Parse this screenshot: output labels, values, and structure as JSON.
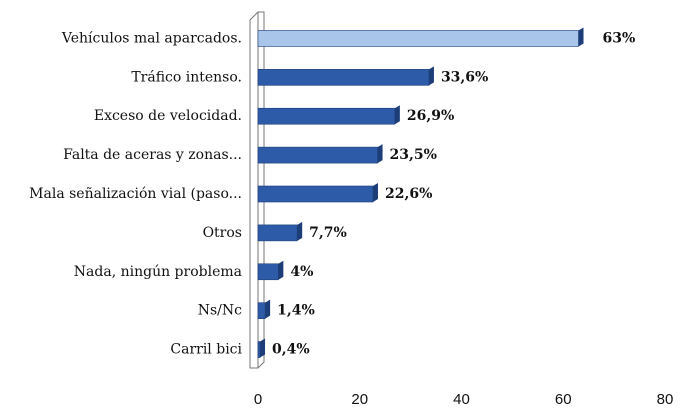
{
  "chart_data": {
    "type": "hbar",
    "categories": [
      "Vehículos mal aparcados.",
      "Tráfico intenso.",
      "Exceso de velocidad.",
      "Falta de aceras y zonas...",
      "Mala señalización vial (paso...",
      "Otros",
      "Nada, ningún problema",
      "Ns/Nc",
      "Carril bici"
    ],
    "values": [
      63,
      33.6,
      26.9,
      23.5,
      22.6,
      7.7,
      4,
      1.4,
      0.4
    ],
    "value_labels": [
      "63%",
      "33,6%",
      "26,9%",
      "23,5%",
      "22,6%",
      "7,7%",
      "4%",
      "1,4%",
      "0,4%"
    ],
    "colors": [
      "#a9c5ea",
      "#2d5ba8",
      "#2d5ba8",
      "#2d5ba8",
      "#2d5ba8",
      "#2d5ba8",
      "#2d5ba8",
      "#2d5ba8",
      "#2d5ba8"
    ],
    "xlim": [
      0,
      80
    ],
    "xticks": [
      0,
      20,
      40,
      60,
      80
    ],
    "grid": false
  }
}
